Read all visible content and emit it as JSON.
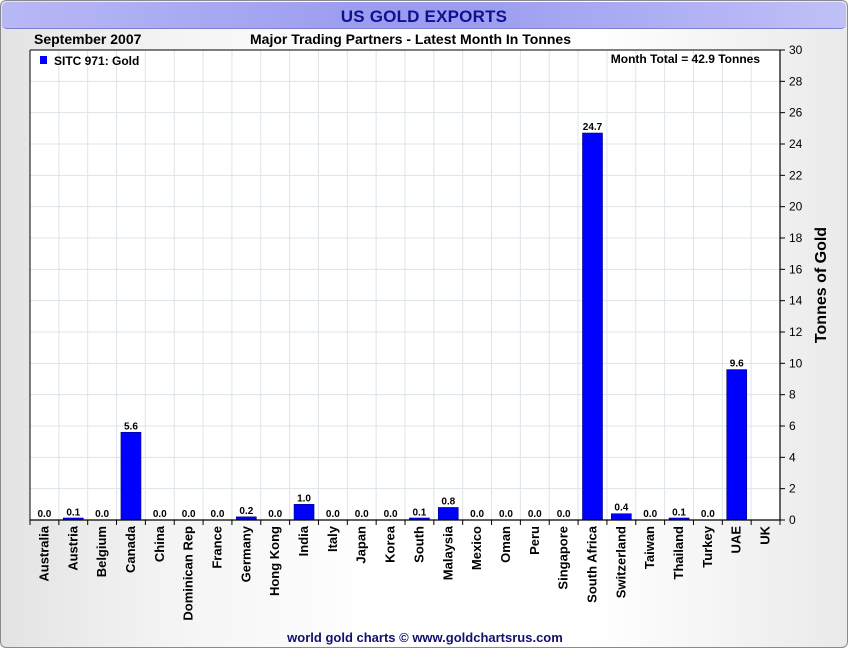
{
  "header": {
    "title": "US GOLD EXPORTS",
    "date": "September 2007",
    "subtitle": "Major Trading Partners - Latest Month In Tonnes"
  },
  "footer": {
    "credit": "world gold charts © www.goldchartsrus.com"
  },
  "colors": {
    "bar": "#0000ff",
    "grid": "#dde4ea",
    "title": "#101090"
  },
  "chart_data": {
    "type": "bar",
    "title": "US GOLD EXPORTS",
    "subtitle": "Major Trading Partners - Latest Month In Tonnes",
    "ylabel": "Tonnes of Gold",
    "xlabel": "",
    "ylim": [
      0,
      30
    ],
    "yticks": [
      0,
      2,
      4,
      6,
      8,
      10,
      12,
      14,
      16,
      18,
      20,
      22,
      24,
      26,
      28,
      30
    ],
    "legend": {
      "label": "SITC 971: Gold",
      "position": "top-left"
    },
    "annotation": "Month Total = 42.9 Tonnes",
    "grid": true,
    "categories": [
      "Australia",
      "Austria",
      "Belgium",
      "Canada",
      "China",
      "Dominican Rep",
      "France",
      "Germany",
      "Hong Kong",
      "India",
      "Italy",
      "Japan",
      "Korea",
      "South",
      "Malaysia",
      "Mexico",
      "Oman",
      "Peru",
      "Singapore",
      "South Africa",
      "Switzerland",
      "Taiwan",
      "Thailand",
      "Turkey",
      "UAE",
      "UK"
    ],
    "values": [
      0.0,
      0.1,
      0.0,
      5.6,
      0.0,
      0.0,
      0.0,
      0.2,
      0.0,
      1.0,
      0.0,
      0.0,
      0.0,
      0.1,
      0.8,
      0.0,
      0.0,
      0.0,
      0.0,
      24.7,
      0.4,
      0.0,
      0.1,
      0.0,
      9.6,
      null
    ],
    "labels": [
      "0.0",
      "0.1",
      "0.0",
      "5.6",
      "0.0",
      "0.0",
      "0.0",
      "0.2",
      "0.0",
      "1.0",
      "0.0",
      "0.0",
      "0.0",
      "0.1",
      "0.8",
      "0.0",
      "0.0",
      "0.0",
      "0.0",
      "24.7",
      "0.4",
      "0.0",
      "0.1",
      "0.0",
      "9.6",
      ""
    ]
  }
}
